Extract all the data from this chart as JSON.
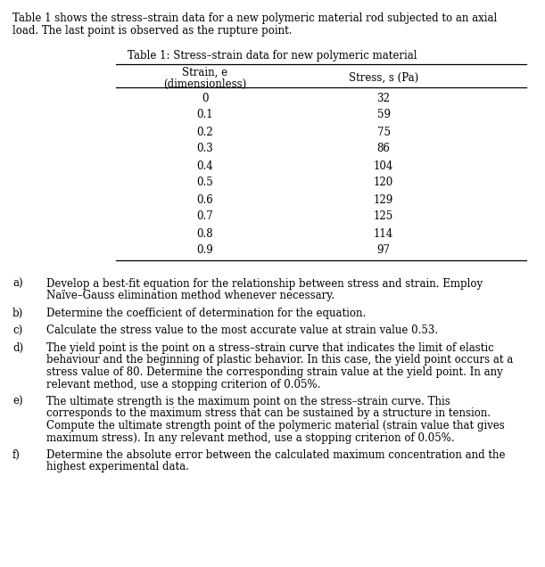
{
  "intro_text_l1": "Table 1 shows the stress–strain data for a new polymeric material rod subjected to an axial",
  "intro_text_l2": "load. The last point is observed as the rupture point.",
  "table_title": "Table 1: Stress–strain data for new polymeric material",
  "col1_header_l1": "Strain, e",
  "col1_header_l2": "(dimensionless)",
  "col2_header": "Stress, s (Pa)",
  "strain_values": [
    "0",
    "0.1",
    "0.2",
    "0.3",
    "0.4",
    "0.5",
    "0.6",
    "0.7",
    "0.8",
    "0.9"
  ],
  "stress_values": [
    "32",
    "59",
    "75",
    "86",
    "104",
    "120",
    "129",
    "125",
    "114",
    "97"
  ],
  "questions": [
    {
      "label": "a)",
      "lines": [
        "Develop a best-fit equation for the relationship between stress and strain. Employ",
        "Naïve–Gauss elimination method whenever necessary."
      ]
    },
    {
      "label": "b)",
      "lines": [
        "Determine the coefficient of determination for the equation."
      ]
    },
    {
      "label": "c)",
      "lines": [
        "Calculate the stress value to the most accurate value at strain value 0.53."
      ]
    },
    {
      "label": "d)",
      "lines": [
        "The yield point is the point on a stress–strain curve that indicates the limit of elastic",
        "behaviour and the beginning of plastic behavior. In this case, the yield point occurs at a",
        "stress value of 80. Determine the corresponding strain value at the yield point. In any",
        "relevant method, use a stopping criterion of 0.05%."
      ]
    },
    {
      "label": "e)",
      "lines": [
        "The ultimate strength is the maximum point on the stress–strain curve. This",
        "corresponds to the maximum stress that can be sustained by a structure in tension.",
        "Compute the ultimate strength point of the polymeric material (strain value that gives",
        "maximum stress). In any relevant method, use a stopping criterion of 0.05%."
      ]
    },
    {
      "label": "f)",
      "lines": [
        "Determine the absolute error between the calculated maximum concentration and the",
        "highest experimental data."
      ]
    }
  ],
  "bg_color": "#ffffff",
  "text_color": "#000000",
  "font_size": 8.5,
  "font_family": "serif"
}
